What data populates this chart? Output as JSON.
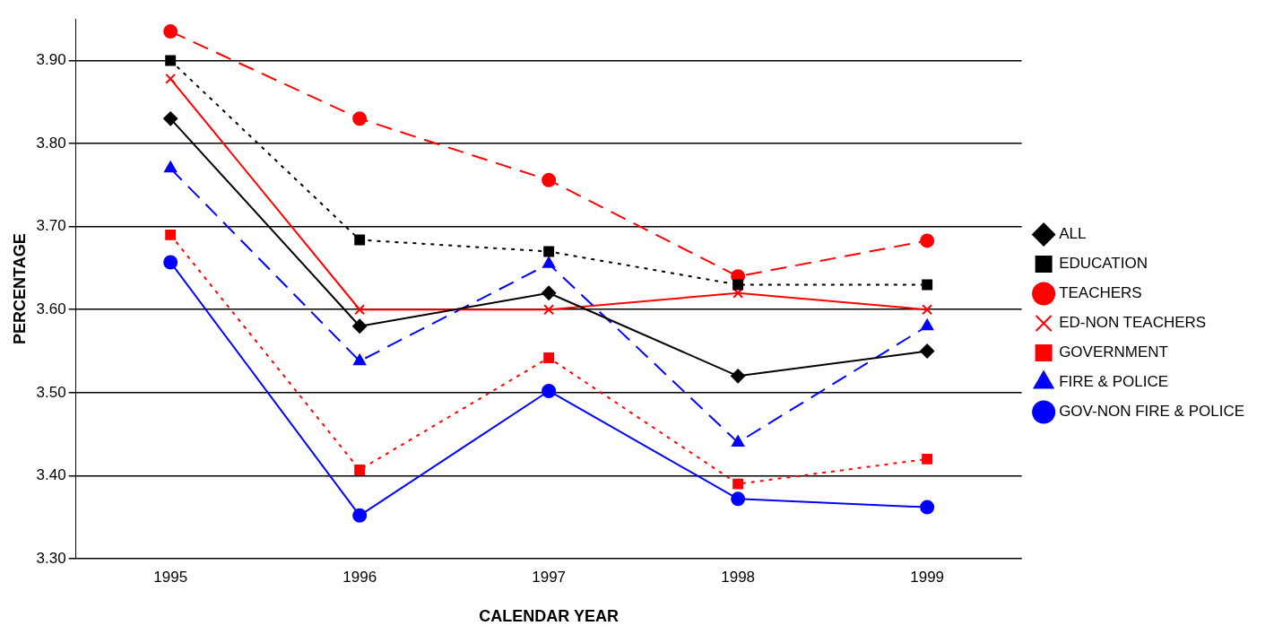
{
  "chart_data": {
    "type": "line",
    "xlabel": "CALENDAR YEAR",
    "ylabel": "PERCENTAGE",
    "categories": [
      "1995",
      "1996",
      "1997",
      "1998",
      "1999"
    ],
    "ylim": [
      3.3,
      3.95
    ],
    "yticks": [
      {
        "value": 3.3,
        "label": "3.30"
      },
      {
        "value": 3.4,
        "label": "3.40"
      },
      {
        "value": 3.5,
        "label": "3.50"
      },
      {
        "value": 3.6,
        "label": "3.60"
      },
      {
        "value": 3.7,
        "label": "3.70"
      },
      {
        "value": 3.8,
        "label": "3.80"
      },
      {
        "value": 3.9,
        "label": "3.90"
      }
    ],
    "grid": "y",
    "legend": "right",
    "series": [
      {
        "name": "ALL",
        "color": "#000000",
        "marker": "diamond",
        "line_style": "solid",
        "values": [
          3.83,
          3.58,
          3.62,
          3.52,
          3.55
        ]
      },
      {
        "name": "EDUCATION",
        "color": "#000000",
        "marker": "square",
        "line_style": "dotted",
        "values": [
          3.9,
          3.684,
          3.67,
          3.63,
          3.63
        ]
      },
      {
        "name": "TEACHERS",
        "color": "#ff0000",
        "marker": "circle",
        "line_style": "dashed",
        "values": [
          3.935,
          3.83,
          3.756,
          3.64,
          3.683
        ]
      },
      {
        "name": "ED-NON TEACHERS",
        "color": "#ff0000",
        "marker": "cross",
        "line_style": "solid",
        "values": [
          3.878,
          3.6,
          3.6,
          3.62,
          3.6
        ]
      },
      {
        "name": "GOVERNMENT",
        "color": "#ff0000",
        "marker": "square",
        "line_style": "dotted",
        "values": [
          3.69,
          3.407,
          3.542,
          3.39,
          3.42
        ]
      },
      {
        "name": "FIRE & POLICE",
        "color": "#0000ff",
        "marker": "triangle",
        "line_style": "dashed",
        "values": [
          3.77,
          3.538,
          3.655,
          3.44,
          3.58
        ]
      },
      {
        "name": "GOV-NON FIRE & POLICE",
        "color": "#0000ff",
        "marker": "circle",
        "line_style": "solid",
        "values": [
          3.657,
          3.352,
          3.502,
          3.372,
          3.362
        ]
      }
    ]
  }
}
